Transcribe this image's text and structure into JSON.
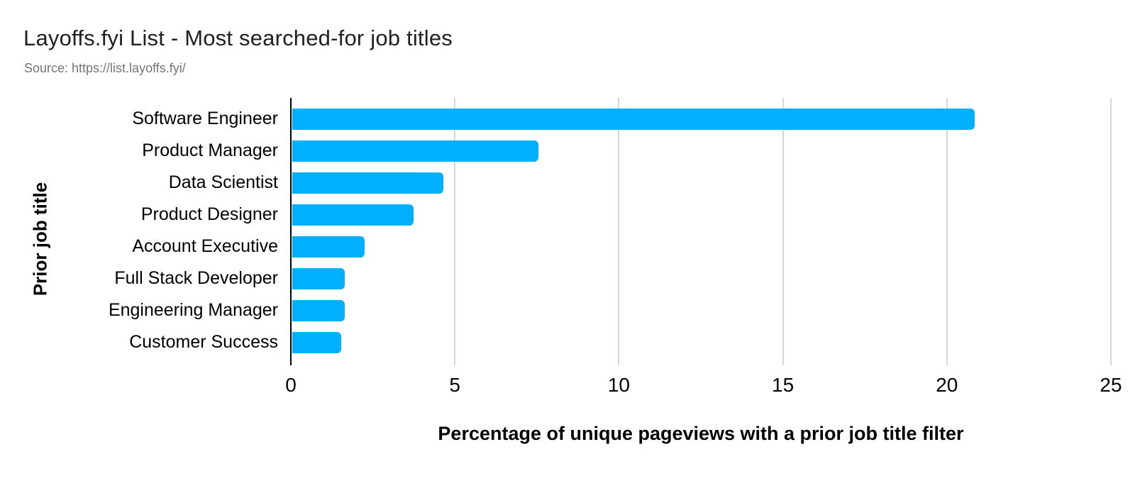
{
  "header": {
    "title": "Layoffs.fyi List - Most searched-for job titles",
    "source": "Source: https://list.layoffs.fyi/"
  },
  "chart_data": {
    "type": "bar",
    "orientation": "horizontal",
    "title": "Layoffs.fyi List - Most searched-for job titles",
    "subtitle": "Source: https://list.layoffs.fyi/",
    "categories": [
      "Software Engineer",
      "Product Manager",
      "Data Scientist",
      "Product Designer",
      "Account Executive",
      "Full Stack Developer",
      "Engineering Manager",
      "Customer Success"
    ],
    "values": [
      20.8,
      7.5,
      4.6,
      3.7,
      2.2,
      1.6,
      1.6,
      1.5
    ],
    "xlabel": "Percentage of unique pageviews with a prior job title filter",
    "ylabel": "Prior job title",
    "xlim": [
      0,
      25
    ],
    "xticks": [
      0,
      5,
      10,
      15,
      20,
      25
    ],
    "grid": true,
    "legend": "none",
    "colors": {
      "bar": "#00b0ff",
      "gridline": "#d6d6d6",
      "axis_line": "#000000",
      "tick_label": "#000000",
      "category_label": "#000000",
      "title": "#212121",
      "source": "#757575"
    }
  }
}
